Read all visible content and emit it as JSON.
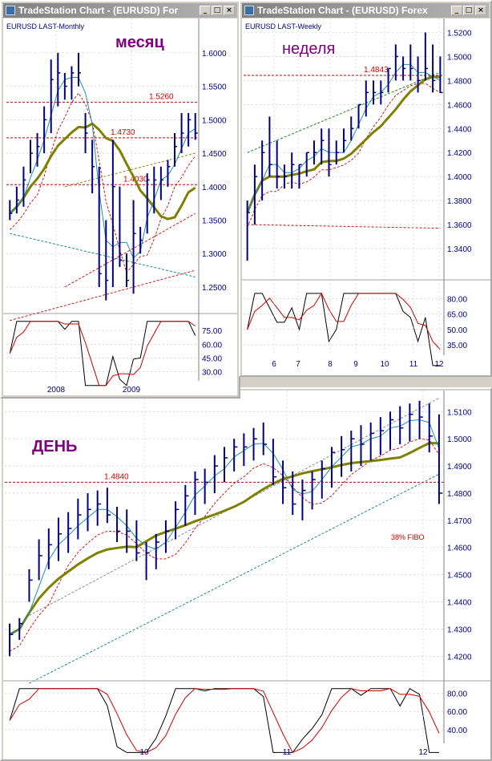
{
  "windows": {
    "monthly": {
      "title": "TradeStation Chart - (EURUSD) For",
      "caption": "EURUSD LAST-Monthly",
      "label_ru": "месяц",
      "levels": [
        "1.5260",
        "1.4730",
        "1.4030"
      ],
      "yticks": [
        "1.6000",
        "1.5500",
        "1.5000",
        "1.4500",
        "1.4000",
        "1.3500",
        "1.3000",
        "1.2500"
      ],
      "osc_ticks": [
        "75.00",
        "60.00",
        "45.00",
        "30.00"
      ],
      "xticks": [
        "2008",
        "2009"
      ]
    },
    "weekly": {
      "title": "TradeStation Chart - (EURUSD) Forex",
      "caption": "EURUSD LAST-Weekly",
      "label_ru": "неделя",
      "levels": [
        "1.4843"
      ],
      "yticks": [
        "1.5200",
        "1.5000",
        "1.4800",
        "1.4600",
        "1.4400",
        "1.4200",
        "1.4000",
        "1.3800",
        "1.3600",
        "1.3400"
      ],
      "osc_ticks": [
        "80.00",
        "65.00",
        "50.00",
        "35.00"
      ],
      "xticks": [
        "6",
        "7",
        "8",
        "9",
        "10",
        "11",
        "12"
      ]
    },
    "daily": {
      "label_ru": "ДЕНЬ",
      "levels": [
        "1.4840"
      ],
      "fibo": "38% FIBO",
      "yticks": [
        "1.5100",
        "1.5000",
        "1.4900",
        "1.4800",
        "1.4700",
        "1.4600",
        "1.4500",
        "1.4400",
        "1.4300",
        "1.4200"
      ],
      "osc_ticks": [
        "80.00",
        "60.00",
        "40.00"
      ],
      "xticks": [
        "10",
        "11",
        "12"
      ]
    }
  },
  "buttons": {
    "minimize": "_",
    "maximize": "□",
    "close": "×"
  },
  "colors": {
    "bars": "#000080",
    "ma_fast": "#1e90b0",
    "ma_slow": "#808000",
    "levels": "#cc0000",
    "label": "#800080"
  },
  "chart_data": [
    {
      "type": "ohlc",
      "title": "EURUSD LAST-Monthly",
      "ylim": [
        1.22,
        1.625
      ],
      "x": [
        "2007-09",
        "2007-10",
        "2007-11",
        "2007-12",
        "2008-01",
        "2008-02",
        "2008-03",
        "2008-04",
        "2008-05",
        "2008-06",
        "2008-07",
        "2008-08",
        "2008-09",
        "2008-10",
        "2008-11",
        "2008-12",
        "2009-01",
        "2009-02",
        "2009-03",
        "2009-04",
        "2009-05",
        "2009-06",
        "2009-07",
        "2009-08",
        "2009-09",
        "2009-10",
        "2009-11",
        "2009-12"
      ],
      "high": [
        1.38,
        1.4,
        1.43,
        1.47,
        1.48,
        1.52,
        1.59,
        1.6,
        1.57,
        1.58,
        1.6,
        1.51,
        1.47,
        1.43,
        1.35,
        1.47,
        1.4,
        1.3,
        1.38,
        1.34,
        1.42,
        1.43,
        1.43,
        1.44,
        1.48,
        1.51,
        1.51,
        1.51
      ],
      "low": [
        1.35,
        1.36,
        1.37,
        1.42,
        1.43,
        1.45,
        1.48,
        1.52,
        1.53,
        1.53,
        1.55,
        1.45,
        1.39,
        1.25,
        1.23,
        1.25,
        1.28,
        1.25,
        1.24,
        1.3,
        1.33,
        1.36,
        1.38,
        1.4,
        1.43,
        1.45,
        1.46,
        1.47
      ],
      "close": [
        1.36,
        1.38,
        1.41,
        1.45,
        1.46,
        1.5,
        1.56,
        1.57,
        1.55,
        1.57,
        1.57,
        1.48,
        1.43,
        1.27,
        1.26,
        1.4,
        1.29,
        1.26,
        1.33,
        1.32,
        1.41,
        1.41,
        1.41,
        1.43,
        1.46,
        1.48,
        1.5,
        1.48
      ],
      "levels": [
        1.526,
        1.473,
        1.403
      ],
      "oscillator_ylim": [
        20,
        90
      ]
    },
    {
      "type": "ohlc",
      "title": "EURUSD LAST-Weekly",
      "ylim": [
        1.318,
        1.525
      ],
      "xticks": [
        "6",
        "7",
        "8",
        "9",
        "10",
        "11",
        "12"
      ],
      "high": [
        1.38,
        1.41,
        1.43,
        1.45,
        1.43,
        1.41,
        1.42,
        1.41,
        1.42,
        1.43,
        1.44,
        1.44,
        1.43,
        1.44,
        1.45,
        1.46,
        1.48,
        1.48,
        1.48,
        1.49,
        1.51,
        1.5,
        1.51,
        1.5,
        1.52,
        1.51,
        1.5
      ],
      "low": [
        1.33,
        1.36,
        1.38,
        1.4,
        1.39,
        1.39,
        1.39,
        1.39,
        1.4,
        1.41,
        1.41,
        1.4,
        1.41,
        1.42,
        1.43,
        1.44,
        1.45,
        1.46,
        1.46,
        1.47,
        1.48,
        1.48,
        1.48,
        1.47,
        1.48,
        1.47,
        1.47
      ],
      "close": [
        1.37,
        1.4,
        1.42,
        1.41,
        1.4,
        1.4,
        1.41,
        1.41,
        1.42,
        1.42,
        1.43,
        1.41,
        1.42,
        1.43,
        1.44,
        1.46,
        1.47,
        1.47,
        1.47,
        1.49,
        1.5,
        1.49,
        1.49,
        1.48,
        1.49,
        1.48,
        1.47
      ],
      "levels": [
        1.4843
      ],
      "oscillator_ylim": [
        25,
        95
      ]
    },
    {
      "type": "ohlc",
      "title": "ДЕНЬ",
      "ylim": [
        1.413,
        1.516
      ],
      "xticks": [
        "10",
        "11",
        "12"
      ],
      "high": [
        1.432,
        1.434,
        1.452,
        1.463,
        1.467,
        1.471,
        1.473,
        1.478,
        1.48,
        1.481,
        1.482,
        1.475,
        1.474,
        1.47,
        1.462,
        1.465,
        1.47,
        1.477,
        1.483,
        1.488,
        1.489,
        1.494,
        1.497,
        1.5,
        1.502,
        1.504,
        1.506,
        1.5,
        1.492,
        1.488,
        1.485,
        1.488,
        1.492,
        1.497,
        1.501,
        1.503,
        1.505,
        1.506,
        1.508,
        1.51,
        1.512,
        1.513,
        1.514,
        1.513,
        1.509
      ],
      "low": [
        1.42,
        1.426,
        1.44,
        1.448,
        1.452,
        1.455,
        1.458,
        1.463,
        1.466,
        1.468,
        1.469,
        1.462,
        1.458,
        1.455,
        1.448,
        1.452,
        1.458,
        1.463,
        1.468,
        1.472,
        1.476,
        1.48,
        1.484,
        1.488,
        1.49,
        1.492,
        1.494,
        1.483,
        1.476,
        1.472,
        1.47,
        1.474,
        1.478,
        1.482,
        1.486,
        1.488,
        1.49,
        1.492,
        1.494,
        1.496,
        1.498,
        1.499,
        1.5,
        1.495,
        1.476
      ],
      "close": [
        1.428,
        1.432,
        1.448,
        1.457,
        1.461,
        1.465,
        1.467,
        1.472,
        1.474,
        1.476,
        1.472,
        1.466,
        1.466,
        1.458,
        1.458,
        1.462,
        1.466,
        1.474,
        1.479,
        1.485,
        1.484,
        1.49,
        1.493,
        1.497,
        1.497,
        1.5,
        1.498,
        1.486,
        1.482,
        1.476,
        1.481,
        1.485,
        1.489,
        1.495,
        1.496,
        1.5,
        1.498,
        1.502,
        1.503,
        1.507,
        1.504,
        1.509,
        1.508,
        1.501,
        1.48
      ],
      "levels": [
        1.484
      ],
      "oscillator_ylim": [
        25,
        90
      ]
    }
  ]
}
